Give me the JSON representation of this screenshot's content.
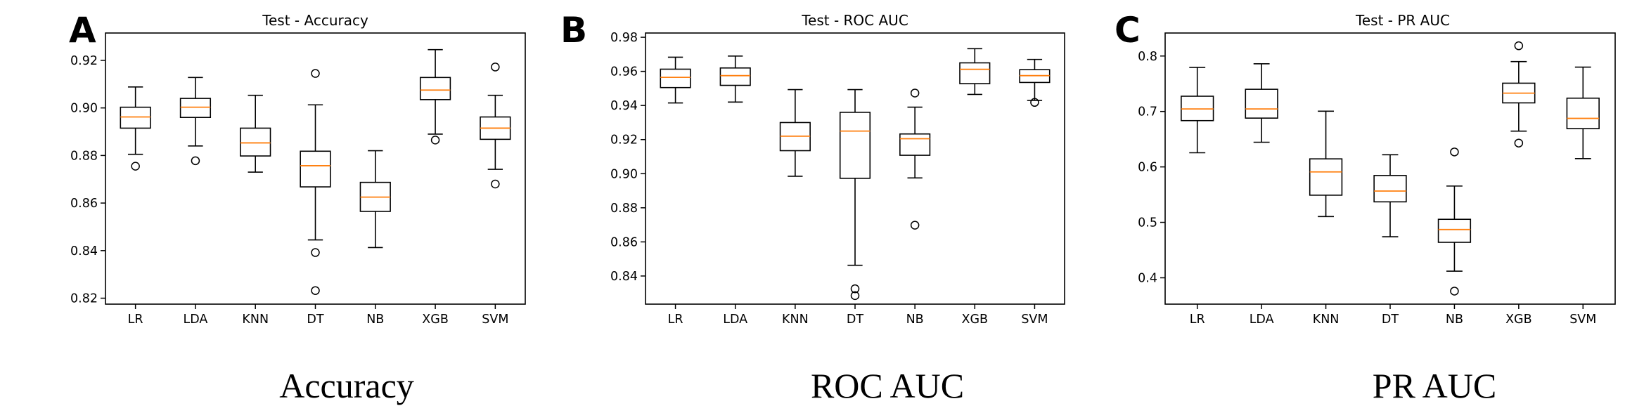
{
  "chart_data": [
    {
      "type": "boxplot",
      "panel_label": "A",
      "title": "Test - Accuracy",
      "caption": "Accuracy",
      "categories": [
        "LR",
        "LDA",
        "KNN",
        "DT",
        "NB",
        "XGB",
        "SVM"
      ],
      "ylim": [
        0.8175,
        0.9315
      ],
      "yticks": [
        0.82,
        0.84,
        0.86,
        0.88,
        0.9,
        0.92
      ],
      "ytick_labels": [
        "0.82",
        "0.84",
        "0.86",
        "0.88",
        "0.90",
        "0.92"
      ],
      "boxes": [
        {
          "whislo": 0.8805,
          "q1": 0.8915,
          "med": 0.8962,
          "q3": 0.9003,
          "whishi": 0.9088,
          "fliers": [
            0.8755
          ]
        },
        {
          "whislo": 0.884,
          "q1": 0.896,
          "med": 0.9003,
          "q3": 0.904,
          "whishi": 0.9128,
          "fliers": [
            0.8778
          ]
        },
        {
          "whislo": 0.873,
          "q1": 0.8798,
          "med": 0.8853,
          "q3": 0.8915,
          "whishi": 0.9053,
          "fliers": []
        },
        {
          "whislo": 0.8445,
          "q1": 0.8668,
          "med": 0.8757,
          "q3": 0.8818,
          "whishi": 0.9013,
          "fliers": [
            0.9145,
            0.8392,
            0.8232
          ]
        },
        {
          "whislo": 0.8413,
          "q1": 0.8565,
          "med": 0.8625,
          "q3": 0.8687,
          "whishi": 0.882,
          "fliers": []
        },
        {
          "whislo": 0.889,
          "q1": 0.9035,
          "med": 0.9075,
          "q3": 0.9128,
          "whishi": 0.9245,
          "fliers": [
            0.8865
          ]
        },
        {
          "whislo": 0.8742,
          "q1": 0.8868,
          "med": 0.8915,
          "q3": 0.8962,
          "whishi": 0.9053,
          "fliers": [
            0.9172,
            0.868
          ]
        }
      ]
    },
    {
      "type": "boxplot",
      "panel_label": "B",
      "title": "Test - ROC AUC",
      "caption": "ROC AUC",
      "categories": [
        "LR",
        "LDA",
        "KNN",
        "DT",
        "NB",
        "XGB",
        "SVM"
      ],
      "ylim": [
        0.8235,
        0.9825
      ],
      "yticks": [
        0.84,
        0.86,
        0.88,
        0.9,
        0.92,
        0.94,
        0.96,
        0.98
      ],
      "ytick_labels": [
        "0.84",
        "0.86",
        "0.88",
        "0.90",
        "0.92",
        "0.94",
        "0.96",
        "0.98"
      ],
      "boxes": [
        {
          "whislo": 0.9415,
          "q1": 0.9505,
          "med": 0.9565,
          "q3": 0.9613,
          "whishi": 0.9683,
          "fliers": []
        },
        {
          "whislo": 0.942,
          "q1": 0.9518,
          "med": 0.9575,
          "q3": 0.962,
          "whishi": 0.969,
          "fliers": []
        },
        {
          "whislo": 0.8985,
          "q1": 0.9135,
          "med": 0.922,
          "q3": 0.93,
          "whishi": 0.9493,
          "fliers": []
        },
        {
          "whislo": 0.8463,
          "q1": 0.8973,
          "med": 0.925,
          "q3": 0.936,
          "whishi": 0.9493,
          "fliers": [
            0.8325,
            0.8285
          ]
        },
        {
          "whislo": 0.8975,
          "q1": 0.9108,
          "med": 0.9205,
          "q3": 0.9233,
          "whishi": 0.939,
          "fliers": [
            0.9473,
            0.8698
          ]
        },
        {
          "whislo": 0.9465,
          "q1": 0.9528,
          "med": 0.9612,
          "q3": 0.965,
          "whishi": 0.9733,
          "fliers": []
        },
        {
          "whislo": 0.943,
          "q1": 0.9535,
          "med": 0.9575,
          "q3": 0.961,
          "whishi": 0.967,
          "fliers": [
            0.9418
          ]
        }
      ]
    },
    {
      "type": "boxplot",
      "panel_label": "C",
      "title": "Test - PR AUC",
      "caption": "PR AUC",
      "categories": [
        "LR",
        "LDA",
        "KNN",
        "DT",
        "NB",
        "XGB",
        "SVM"
      ],
      "ylim": [
        0.3525,
        0.8415
      ],
      "yticks": [
        0.4,
        0.5,
        0.6,
        0.7,
        0.8
      ],
      "ytick_labels": [
        "0.4",
        "0.5",
        "0.6",
        "0.7",
        "0.8"
      ],
      "boxes": [
        {
          "whislo": 0.6255,
          "q1": 0.6835,
          "med": 0.7045,
          "q3": 0.7275,
          "whishi": 0.7795,
          "fliers": []
        },
        {
          "whislo": 0.6445,
          "q1": 0.688,
          "med": 0.7045,
          "q3": 0.74,
          "whishi": 0.786,
          "fliers": []
        },
        {
          "whislo": 0.5105,
          "q1": 0.549,
          "med": 0.591,
          "q3": 0.6145,
          "whishi": 0.7005,
          "fliers": []
        },
        {
          "whislo": 0.474,
          "q1": 0.537,
          "med": 0.5565,
          "q3": 0.5845,
          "whishi": 0.622,
          "fliers": []
        },
        {
          "whislo": 0.412,
          "q1": 0.464,
          "med": 0.487,
          "q3": 0.5055,
          "whishi": 0.5655,
          "fliers": [
            0.627,
            0.376
          ]
        },
        {
          "whislo": 0.6645,
          "q1": 0.7155,
          "med": 0.733,
          "q3": 0.751,
          "whishi": 0.79,
          "fliers": [
            0.8185,
            0.643
          ]
        },
        {
          "whislo": 0.615,
          "q1": 0.669,
          "med": 0.6875,
          "q3": 0.724,
          "whishi": 0.78,
          "fliers": []
        }
      ]
    }
  ],
  "style": {
    "median_color": "#ff7f0e",
    "box_color": "#000000",
    "background": "#ffffff"
  }
}
